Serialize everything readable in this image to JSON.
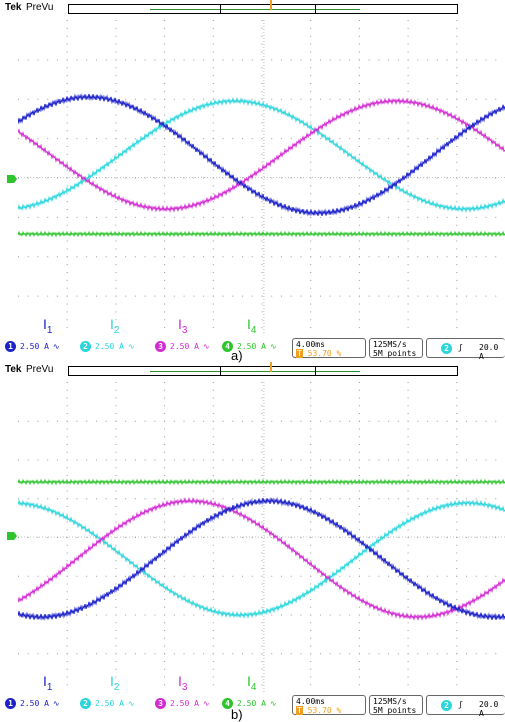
{
  "colors": {
    "ch1": "#1d22c8",
    "ch2": "#2ad6dc",
    "ch3": "#d22ad2",
    "ch4": "#2cc52c",
    "orange": "#f0a020"
  },
  "panels": [
    {
      "caption": "a)",
      "header": {
        "brand": "Tek",
        "mode": "PreVu"
      },
      "trace_labels": [
        {
          "main": "I",
          "sub": "1"
        },
        {
          "main": "I",
          "sub": "2"
        },
        {
          "main": "I",
          "sub": "3"
        },
        {
          "main": "I",
          "sub": "4"
        }
      ],
      "channels": [
        {
          "num": "1",
          "scale": "2.50 A"
        },
        {
          "num": "2",
          "scale": "2.50 A"
        },
        {
          "num": "3",
          "scale": "2.50 A"
        },
        {
          "num": "4",
          "scale": "2.50 A"
        }
      ],
      "timebase": {
        "time": "4.00ms",
        "position": "53.70 %"
      },
      "acquisition": {
        "rate": "125MS/s",
        "record": "5M points"
      },
      "trigger": {
        "channel": "2",
        "level": "20.0 A"
      },
      "icons": {
        "bw": "bw-limit-icon",
        "trigger": "trigger-marker-icon"
      }
    },
    {
      "caption": "b)",
      "header": {
        "brand": "Tek",
        "mode": "PreVu"
      },
      "trace_labels": [
        {
          "main": "I",
          "sub": "1"
        },
        {
          "main": "I",
          "sub": "2"
        },
        {
          "main": "I",
          "sub": "3"
        },
        {
          "main": "I",
          "sub": "4"
        }
      ],
      "channels": [
        {
          "num": "1",
          "scale": "2.50 A"
        },
        {
          "num": "2",
          "scale": "2.50 A"
        },
        {
          "num": "3",
          "scale": "2.50 A"
        },
        {
          "num": "4",
          "scale": "2.50 A"
        }
      ],
      "timebase": {
        "time": "4.00ms",
        "position": "53.70 %"
      },
      "acquisition": {
        "rate": "125MS/s",
        "record": "5M points"
      },
      "trigger": {
        "channel": "2",
        "level": "20.0 A"
      },
      "icons": {
        "bw": "bw-limit-icon",
        "trigger": "trigger-marker-icon"
      }
    }
  ]
}
